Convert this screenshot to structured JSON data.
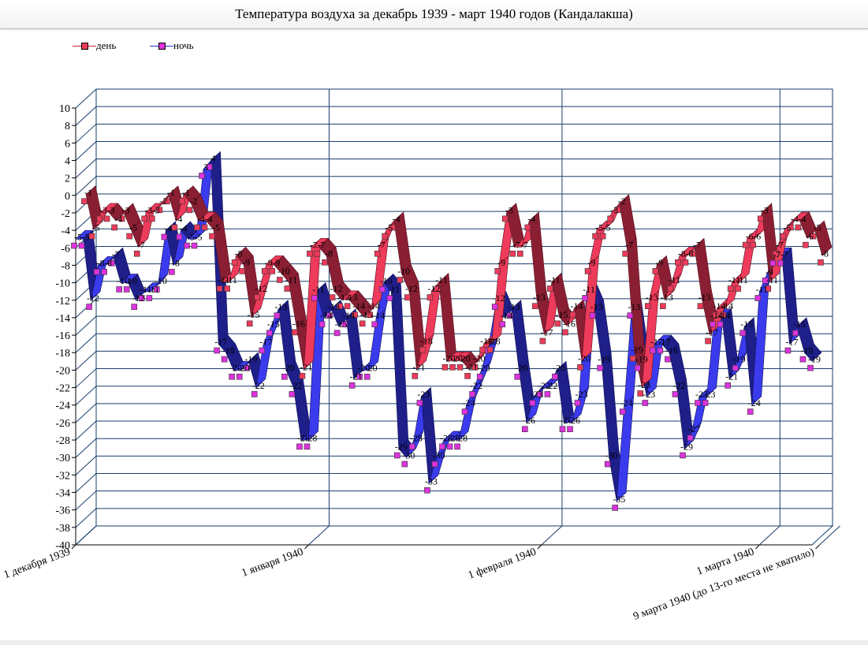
{
  "chart_data": {
    "type": "line",
    "title": "Температура воздуха за декабрь 1939 - март 1940 годов (Кандалакша)",
    "ylim": [
      -40,
      10
    ],
    "yticks": [
      10,
      8,
      6,
      4,
      2,
      0,
      -2,
      -4,
      -6,
      -8,
      -10,
      -12,
      -14,
      -16,
      -18,
      -20,
      -22,
      -24,
      -26,
      -28,
      -30,
      -32,
      -34,
      -36,
      -38,
      -40
    ],
    "legend_position": "top-left",
    "grid": true,
    "x_tick_labels": [
      {
        "day": 1,
        "label": "1 декабря 1939"
      },
      {
        "day": 32,
        "label": "1 января 1940"
      },
      {
        "day": 63,
        "label": "1 февраля 1940"
      },
      {
        "day": 92,
        "label": "1 марта 1940"
      },
      {
        "day": 100,
        "label": "9 марта 1940 (до 13-го места не хватило)"
      }
    ],
    "series": [
      {
        "name": "день",
        "color": "#ee3b5b",
        "values": [
          -1,
          -5,
          -3,
          -3,
          -4,
          -3,
          -5,
          -7,
          -3,
          -3,
          -2,
          -1,
          -4,
          -1,
          -2,
          -4,
          -4,
          -5,
          -11,
          -11,
          -8,
          -9,
          -15,
          -12,
          -9,
          -9,
          -10,
          -11,
          -16,
          -21,
          -7,
          -7,
          -8,
          -12,
          -13,
          -13,
          -14,
          -15,
          -14,
          -7,
          -5,
          -4,
          -10,
          -12,
          -21,
          -18,
          -12,
          -11,
          -20,
          -20,
          -20,
          -21,
          -20,
          -18,
          -18,
          -9,
          -3,
          -7,
          -7,
          -4,
          -13,
          -17,
          -11,
          -15,
          -16,
          -14,
          -20,
          -9,
          -5,
          -5,
          -3,
          -2,
          -7,
          -19,
          -23,
          -13,
          -9,
          -13,
          -11,
          -8,
          -8,
          -7,
          -13,
          -17,
          -14,
          -14,
          -11,
          -11,
          -6,
          -6,
          -3,
          -11,
          -7,
          -5,
          -4,
          -4,
          -6,
          -5,
          -8
        ]
      },
      {
        "name": "ночь",
        "color": "#dd33dd",
        "values": [
          -5,
          -5,
          -12,
          -8,
          -8,
          -7,
          -10,
          -10,
          -12,
          -11,
          -11,
          -10,
          -4,
          -8,
          -4,
          -5,
          -5,
          3,
          4,
          -17,
          -18,
          -20,
          -20,
          -19,
          -22,
          -17,
          -15,
          -13,
          -20,
          -22,
          -28,
          -28,
          -11,
          -14,
          -13,
          -15,
          -14,
          -21,
          -20,
          -20,
          -14,
          -10,
          -11,
          -29,
          -30,
          -28,
          -23,
          -33,
          -30,
          -28,
          -28,
          -28,
          -24,
          -22,
          -20,
          -17,
          -12,
          -14,
          -13,
          -20,
          -26,
          -23,
          -22,
          -22,
          -20,
          -26,
          -26,
          -23,
          -11,
          -13,
          -19,
          -30,
          -35,
          -24,
          -13,
          -19,
          -23,
          -17,
          -17,
          -18,
          -22,
          -29,
          -27,
          -23,
          -23,
          -14,
          -14,
          -21,
          -19,
          -15,
          -24,
          -11,
          -9,
          -7,
          -7,
          -17,
          -15,
          -18,
          -19
        ]
      }
    ]
  }
}
